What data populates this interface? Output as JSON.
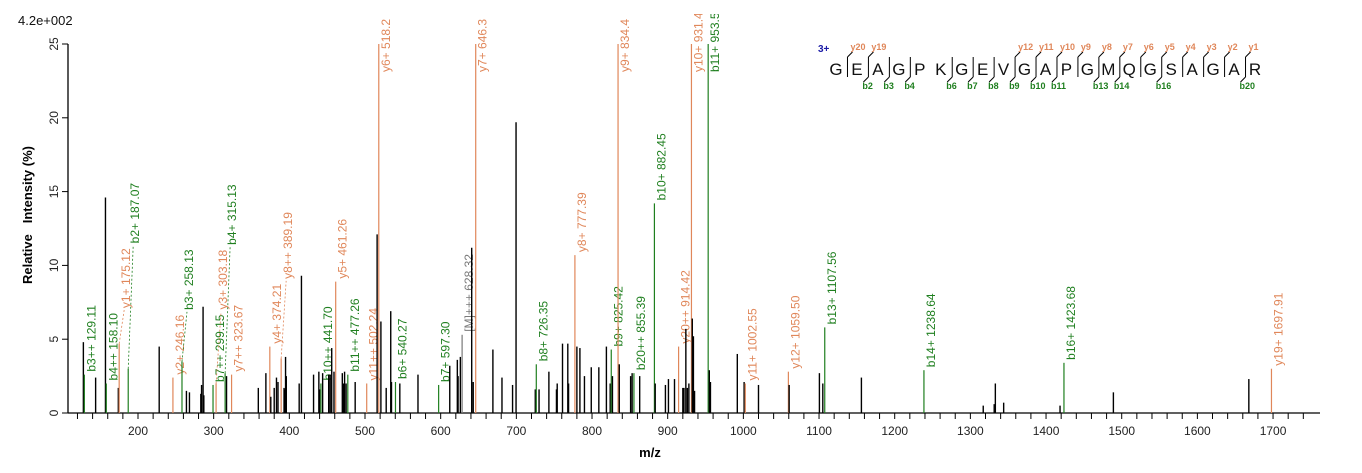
{
  "chart_data": {
    "type": "bar",
    "scale_label": "4.2e+002",
    "xlabel": "m/z",
    "ylabel": "Relative   Intensity (%)",
    "xlim": [
      108,
      1760
    ],
    "ylim": [
      0,
      25
    ],
    "x_ticks": [
      200,
      300,
      400,
      500,
      600,
      700,
      800,
      900,
      1000,
      1100,
      1200,
      1300,
      1400,
      1500,
      1600,
      1700
    ],
    "y_ticks": [
      0,
      5,
      10,
      15,
      20,
      25
    ],
    "grid": false,
    "colors": {
      "y": "#e0875a",
      "b": "#1f7f1f",
      "M": "#7a7a7a",
      "unassigned": "#000000"
    },
    "peaks": [
      {
        "mz": 127.8,
        "intensity": 4.8,
        "ion": null
      },
      {
        "mz": 129.11,
        "intensity": 2.6,
        "ion": "b",
        "label": "b3++ 129.11"
      },
      {
        "mz": 144,
        "intensity": 2.4,
        "ion": null
      },
      {
        "mz": 157,
        "intensity": 14.6,
        "ion": null
      },
      {
        "mz": 158.1,
        "intensity": 2.0,
        "ion": "b",
        "label": "b4++ 158.10"
      },
      {
        "mz": 174,
        "intensity": 1.7,
        "ion": null
      },
      {
        "mz": 175.12,
        "intensity": 4.7,
        "ion": "y",
        "label": "y1+ 175.12"
      },
      {
        "mz": 187.07,
        "intensity": 3.0,
        "ion": "b",
        "label": "b2+ 187.07"
      },
      {
        "mz": 228,
        "intensity": 4.5,
        "ion": null
      },
      {
        "mz": 246.16,
        "intensity": 2.4,
        "ion": "y",
        "label": "y2+ 246.16"
      },
      {
        "mz": 258.13,
        "intensity": 3.5,
        "ion": "b",
        "label": "b3+ 258.13"
      },
      {
        "mz": 264,
        "intensity": 1.5,
        "ion": null
      },
      {
        "mz": 268,
        "intensity": 1.4,
        "ion": null
      },
      {
        "mz": 283,
        "intensity": 1.3,
        "ion": null
      },
      {
        "mz": 284,
        "intensity": 1.9,
        "ion": null
      },
      {
        "mz": 286,
        "intensity": 7.2,
        "ion": null
      },
      {
        "mz": 287,
        "intensity": 1.2,
        "ion": null
      },
      {
        "mz": 299.15,
        "intensity": 1.9,
        "ion": "b",
        "label": "b7++ 299.15"
      },
      {
        "mz": 303.18,
        "intensity": 2.0,
        "ion": "y",
        "label": "y3+ 303.18"
      },
      {
        "mz": 315.13,
        "intensity": 2.7,
        "ion": "b",
        "label": "b4+ 315.13"
      },
      {
        "mz": 317,
        "intensity": 2.5,
        "ion": null
      },
      {
        "mz": 323.67,
        "intensity": 2.6,
        "ion": "y",
        "label": "y7++ 323.67"
      },
      {
        "mz": 359,
        "intensity": 1.7,
        "ion": null
      },
      {
        "mz": 369,
        "intensity": 2.7,
        "ion": null
      },
      {
        "mz": 374.21,
        "intensity": 4.5,
        "ion": "y",
        "label": "y4+ 374.21"
      },
      {
        "mz": 375.5,
        "intensity": 1.1,
        "ion": null
      },
      {
        "mz": 380,
        "intensity": 1.7,
        "ion": null
      },
      {
        "mz": 383,
        "intensity": 2.4,
        "ion": null
      },
      {
        "mz": 385,
        "intensity": 2.1,
        "ion": null
      },
      {
        "mz": 389.19,
        "intensity": 3.7,
        "ion": "y",
        "label": "y8++ 389.19"
      },
      {
        "mz": 393,
        "intensity": 1.7,
        "ion": null
      },
      {
        "mz": 394,
        "intensity": 1.6,
        "ion": null
      },
      {
        "mz": 395,
        "intensity": 3.8,
        "ion": null
      },
      {
        "mz": 396,
        "intensity": 2.5,
        "ion": null
      },
      {
        "mz": 413,
        "intensity": 2.0,
        "ion": null
      },
      {
        "mz": 416,
        "intensity": 9.3,
        "ion": null
      },
      {
        "mz": 432,
        "intensity": 2.6,
        "ion": null
      },
      {
        "mz": 439,
        "intensity": 2.8,
        "ion": null
      },
      {
        "mz": 440,
        "intensity": 1.6,
        "ion": null
      },
      {
        "mz": 441.7,
        "intensity": 2.0,
        "ion": "b",
        "label": "b10++ 441.70"
      },
      {
        "mz": 444,
        "intensity": 2.7,
        "ion": null
      },
      {
        "mz": 452,
        "intensity": 2.6,
        "ion": null
      },
      {
        "mz": 454,
        "intensity": 2.6,
        "ion": null
      },
      {
        "mz": 456,
        "intensity": 4.4,
        "ion": null
      },
      {
        "mz": 459,
        "intensity": 2.8,
        "ion": null
      },
      {
        "mz": 461.26,
        "intensity": 8.9,
        "ion": "y",
        "label": "y5+ 461.26"
      },
      {
        "mz": 470,
        "intensity": 2.7,
        "ion": null
      },
      {
        "mz": 471.5,
        "intensity": 2.0,
        "ion": null
      },
      {
        "mz": 473,
        "intensity": 2.8,
        "ion": null
      },
      {
        "mz": 475,
        "intensity": 2.0,
        "ion": null
      },
      {
        "mz": 477.26,
        "intensity": 2.6,
        "ion": "b",
        "label": "b11++ 477.26"
      },
      {
        "mz": 487,
        "intensity": 2.1,
        "ion": null
      },
      {
        "mz": 502.24,
        "intensity": 2.0,
        "ion": "y",
        "label": "y11++ 502.24"
      },
      {
        "mz": 516,
        "intensity": 12.1,
        "ion": null
      },
      {
        "mz": 518.2,
        "intensity": 25,
        "ion": "y",
        "label": "y6+ 518.2"
      },
      {
        "mz": 521,
        "intensity": 6.2,
        "ion": null
      },
      {
        "mz": 528,
        "intensity": 1.7,
        "ion": null
      },
      {
        "mz": 534,
        "intensity": 6.9,
        "ion": null
      },
      {
        "mz": 535,
        "intensity": 2.1,
        "ion": null
      },
      {
        "mz": 540.27,
        "intensity": 2.1,
        "ion": "b",
        "label": "b6+ 540.27"
      },
      {
        "mz": 546,
        "intensity": 2.0,
        "ion": null
      },
      {
        "mz": 570,
        "intensity": 2.6,
        "ion": null
      },
      {
        "mz": 597.3,
        "intensity": 1.9,
        "ion": "b",
        "label": "b7+ 597.30"
      },
      {
        "mz": 612,
        "intensity": 3.2,
        "ion": null
      },
      {
        "mz": 622,
        "intensity": 3.6,
        "ion": null
      },
      {
        "mz": 623,
        "intensity": 2.5,
        "ion": null
      },
      {
        "mz": 626,
        "intensity": 3.8,
        "ion": null
      },
      {
        "mz": 628.32,
        "intensity": 5.3,
        "ion": "M",
        "label": "[M]+++ 628.32"
      },
      {
        "mz": 641,
        "intensity": 11.2,
        "ion": null
      },
      {
        "mz": 643,
        "intensity": 2.1,
        "ion": null
      },
      {
        "mz": 646.3,
        "intensity": 25,
        "ion": "y",
        "label": "y7+ 646.3"
      },
      {
        "mz": 669,
        "intensity": 4.3,
        "ion": null
      },
      {
        "mz": 681,
        "intensity": 2.4,
        "ion": null
      },
      {
        "mz": 695,
        "intensity": 1.9,
        "ion": null
      },
      {
        "mz": 699.6,
        "intensity": 19.7,
        "ion": null
      },
      {
        "mz": 725,
        "intensity": 1.6,
        "ion": null
      },
      {
        "mz": 726.35,
        "intensity": 3.3,
        "ion": "b",
        "label": "b8+ 726.35"
      },
      {
        "mz": 730,
        "intensity": 1.6,
        "ion": null
      },
      {
        "mz": 743,
        "intensity": 2.8,
        "ion": null
      },
      {
        "mz": 753,
        "intensity": 1.6,
        "ion": null
      },
      {
        "mz": 754,
        "intensity": 2.0,
        "ion": null
      },
      {
        "mz": 761,
        "intensity": 4.7,
        "ion": null
      },
      {
        "mz": 768,
        "intensity": 4.7,
        "ion": null
      },
      {
        "mz": 769,
        "intensity": 2.0,
        "ion": null
      },
      {
        "mz": 777.39,
        "intensity": 10.7,
        "ion": "y",
        "label": "y8+ 777.39"
      },
      {
        "mz": 780,
        "intensity": 4.5,
        "ion": null
      },
      {
        "mz": 784,
        "intensity": 4.4,
        "ion": null
      },
      {
        "mz": 790,
        "intensity": 2.5,
        "ion": null
      },
      {
        "mz": 799,
        "intensity": 3.1,
        "ion": null
      },
      {
        "mz": 809,
        "intensity": 3.1,
        "ion": null
      },
      {
        "mz": 819,
        "intensity": 4.5,
        "ion": null
      },
      {
        "mz": 824,
        "intensity": 2.0,
        "ion": null
      },
      {
        "mz": 825.42,
        "intensity": 4.3,
        "ion": "b",
        "label": "b9+ 825.42"
      },
      {
        "mz": 827,
        "intensity": 2.5,
        "ion": null
      },
      {
        "mz": 834.4,
        "intensity": 25,
        "ion": "y",
        "label": "y9+ 834.4"
      },
      {
        "mz": 836,
        "intensity": 3.3,
        "ion": null
      },
      {
        "mz": 851,
        "intensity": 2.5,
        "ion": null
      },
      {
        "mz": 853,
        "intensity": 2.7,
        "ion": null
      },
      {
        "mz": 855.39,
        "intensity": 2.7,
        "ion": "b",
        "label": "b20++ 855.39"
      },
      {
        "mz": 863,
        "intensity": 2.5,
        "ion": null
      },
      {
        "mz": 882.45,
        "intensity": 14.2,
        "ion": "b",
        "label": "b10+ 882.45"
      },
      {
        "mz": 883.5,
        "intensity": 2.0,
        "ion": null
      },
      {
        "mz": 897,
        "intensity": 1.9,
        "ion": null
      },
      {
        "mz": 901,
        "intensity": 2.3,
        "ion": null
      },
      {
        "mz": 909,
        "intensity": 2.3,
        "ion": null
      },
      {
        "mz": 914.42,
        "intensity": 4.5,
        "ion": "y",
        "label": "y20++ 914.42"
      },
      {
        "mz": 920,
        "intensity": 1.7,
        "ion": null
      },
      {
        "mz": 921.5,
        "intensity": 1.7,
        "ion": null
      },
      {
        "mz": 924,
        "intensity": 5.7,
        "ion": null
      },
      {
        "mz": 926,
        "intensity": 1.7,
        "ion": null
      },
      {
        "mz": 928,
        "intensity": 2.0,
        "ion": null
      },
      {
        "mz": 931.4,
        "intensity": 25,
        "ion": "y",
        "label": "y10+ 931.4"
      },
      {
        "mz": 932.5,
        "intensity": 6.4,
        "ion": null
      },
      {
        "mz": 934,
        "intensity": 5.2,
        "ion": null
      },
      {
        "mz": 935.5,
        "intensity": 1.5,
        "ion": null
      },
      {
        "mz": 953.5,
        "intensity": 25,
        "ion": "b",
        "label": "b11+ 953.5"
      },
      {
        "mz": 955,
        "intensity": 2.9,
        "ion": null
      },
      {
        "mz": 956.5,
        "intensity": 2.1,
        "ion": null
      },
      {
        "mz": 992,
        "intensity": 4.0,
        "ion": null
      },
      {
        "mz": 1001,
        "intensity": 2.1,
        "ion": null
      },
      {
        "mz": 1002.55,
        "intensity": 2.0,
        "ion": "y",
        "label": "y11+ 1002.55"
      },
      {
        "mz": 1020,
        "intensity": 1.9,
        "ion": null
      },
      {
        "mz": 1059.5,
        "intensity": 2.8,
        "ion": "y",
        "label": "y12+ 1059.50"
      },
      {
        "mz": 1060.5,
        "intensity": 1.9,
        "ion": null
      },
      {
        "mz": 1100.5,
        "intensity": 2.7,
        "ion": null
      },
      {
        "mz": 1105,
        "intensity": 2.0,
        "ion": null
      },
      {
        "mz": 1107.56,
        "intensity": 5.8,
        "ion": "b",
        "label": "b13+ 1107.56"
      },
      {
        "mz": 1156,
        "intensity": 2.4,
        "ion": null
      },
      {
        "mz": 1238.64,
        "intensity": 2.9,
        "ion": "b",
        "label": "b14+ 1238.64"
      },
      {
        "mz": 1317,
        "intensity": 0.5,
        "ion": null
      },
      {
        "mz": 1331.5,
        "intensity": 0.6,
        "ion": null
      },
      {
        "mz": 1333,
        "intensity": 2.0,
        "ion": null
      },
      {
        "mz": 1344,
        "intensity": 0.7,
        "ion": null
      },
      {
        "mz": 1418.5,
        "intensity": 0.5,
        "ion": null
      },
      {
        "mz": 1423.68,
        "intensity": 3.4,
        "ion": "b",
        "label": "b16+ 1423.68"
      },
      {
        "mz": 1489,
        "intensity": 1.4,
        "ion": null
      },
      {
        "mz": 1668,
        "intensity": 2.3,
        "ion": null
      },
      {
        "mz": 1697.91,
        "intensity": 3.0,
        "ion": "y",
        "label": "y19+ 1697.91"
      }
    ]
  },
  "sequence": {
    "charge": "3+",
    "residues": [
      "G",
      "E",
      "A",
      "G",
      "P",
      "K",
      "G",
      "E",
      "V",
      "G",
      "A",
      "P",
      "G",
      "M",
      "Q",
      "G",
      "S",
      "A",
      "G",
      "A",
      "R"
    ],
    "y_ions": [
      {
        "after": 1,
        "label": "y20"
      },
      {
        "after": 2,
        "label": "y19"
      },
      {
        "after": 9,
        "label": "y12"
      },
      {
        "after": 10,
        "label": "y11"
      },
      {
        "after": 11,
        "label": "y10"
      },
      {
        "after": 12,
        "label": "y9"
      },
      {
        "after": 13,
        "label": "y8"
      },
      {
        "after": 14,
        "label": "y7"
      },
      {
        "after": 15,
        "label": "y6"
      },
      {
        "after": 16,
        "label": "y5"
      },
      {
        "after": 17,
        "label": "y4"
      },
      {
        "after": 18,
        "label": "y3"
      },
      {
        "after": 19,
        "label": "y2"
      },
      {
        "after": 20,
        "label": "y1"
      }
    ],
    "b_ions": [
      {
        "after": 2,
        "label": "b2"
      },
      {
        "after": 3,
        "label": "b3"
      },
      {
        "after": 4,
        "label": "b4"
      },
      {
        "after": 6,
        "label": "b6"
      },
      {
        "after": 7,
        "label": "b7"
      },
      {
        "after": 8,
        "label": "b8"
      },
      {
        "after": 9,
        "label": "b9"
      },
      {
        "after": 10,
        "label": "b10"
      },
      {
        "after": 11,
        "label": "b11"
      },
      {
        "after": 13,
        "label": "b13"
      },
      {
        "after": 14,
        "label": "b14"
      },
      {
        "after": 16,
        "label": "b16"
      },
      {
        "after": 20,
        "label": "b20"
      }
    ],
    "charge_color": "#1a1aa6"
  }
}
